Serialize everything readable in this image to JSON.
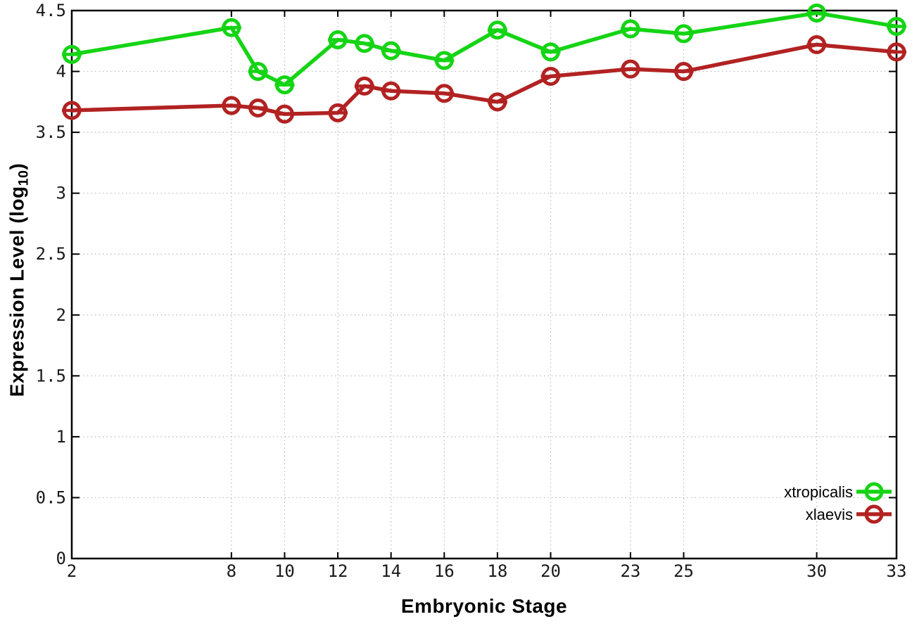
{
  "chart_data": {
    "type": "line",
    "title": "",
    "xlabel": "Embryonic Stage",
    "ylabel_main": "Expression Level (log",
    "ylabel_sub": "10",
    "ylabel_suffix": ")",
    "xlim": [
      2,
      33
    ],
    "ylim": [
      0,
      4.5
    ],
    "grid": true,
    "legend_position": "bottom-right-inside",
    "marker": "open-circle",
    "error_bars": true,
    "xticks": [
      2,
      8,
      10,
      12,
      14,
      16,
      18,
      20,
      23,
      25,
      30,
      33
    ],
    "xtick_labels": [
      "2",
      "8",
      "10",
      "12",
      "14",
      "16",
      "18",
      "20",
      "23",
      "25",
      "30",
      "33"
    ],
    "yticks": [
      0,
      0.5,
      1,
      1.5,
      2,
      2.5,
      3,
      3.5,
      4,
      4.5
    ],
    "ytick_labels": [
      "0",
      "0.5",
      "1",
      "1.5",
      "2",
      "2.5",
      "3",
      "3.5",
      "4",
      "4.5"
    ],
    "x": [
      2,
      8,
      9,
      10,
      12,
      13,
      14,
      16,
      18,
      20,
      23,
      25,
      30,
      33
    ],
    "series": [
      {
        "name": "xtropicalis",
        "color": "#15d415",
        "values": [
          4.14,
          4.36,
          4.0,
          3.89,
          4.26,
          4.23,
          4.17,
          4.09,
          4.34,
          4.16,
          4.35,
          4.31,
          4.48,
          4.37
        ]
      },
      {
        "name": "xlaevis",
        "color": "#b22222",
        "values": [
          3.68,
          3.72,
          3.7,
          3.65,
          3.66,
          3.88,
          3.84,
          3.82,
          3.75,
          3.96,
          4.02,
          4.0,
          4.22,
          4.16
        ]
      }
    ],
    "colors": {
      "grid": "#b8b8b8",
      "border": "#000000",
      "background": "#ffffff"
    }
  }
}
